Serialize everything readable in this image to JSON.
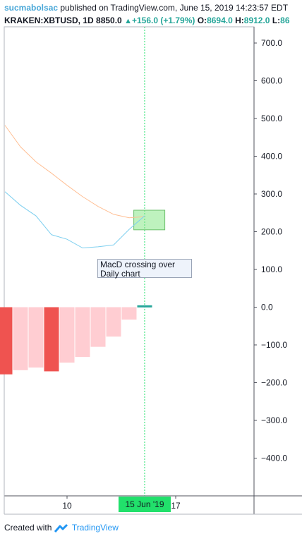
{
  "header": {
    "user": "sucmabolsac",
    "published": " published on TradingView.com, June 15, 2019 14:23:57 EDT",
    "symbol": "KRAKEN:XBTUSD, 1D",
    "price": "8850.0",
    "change": "+156.0 (+1.79%)",
    "open_label": "O:",
    "open_value": "8694.0",
    "high_label": "H:",
    "high_value": "8912.0",
    "low_label": "L:",
    "low_value": "86"
  },
  "annotation": {
    "text": "MacD crossing over Daily chart"
  },
  "date_tag": "15 Jun '19",
  "footer": {
    "created": "Created with",
    "brand": "TradingView"
  },
  "chart_data": {
    "type": "bar",
    "title": "",
    "xlabel": "",
    "ylabel": "",
    "ylim": [
      -500,
      740
    ],
    "y_ticks": [
      700,
      600,
      500,
      400,
      300,
      200,
      100,
      0,
      -100,
      -200,
      -300,
      -400
    ],
    "y_tick_labels": [
      "700.0",
      "600.0",
      "500.0",
      "400.0",
      "300.0",
      "200.0",
      "100.0",
      "0.0",
      "−100.0",
      "−200.0",
      "−300.0",
      "−400.0"
    ],
    "x_tick_labels": [
      {
        "day": 10,
        "label": "10"
      },
      {
        "day": 17,
        "label": "17"
      }
    ],
    "x_range_days": [
      6,
      21.5
    ],
    "histogram": {
      "days": [
        6,
        7,
        8,
        9,
        10,
        11,
        12,
        13,
        14,
        15
      ],
      "values": [
        -178,
        -167,
        -160,
        -170,
        -147,
        -132,
        -105,
        -78,
        -33,
        5
      ],
      "colors": [
        "#ef5350",
        "#ffcdd2",
        "#ffcdd2",
        "#ef5350",
        "#ffcdd2",
        "#ffcdd2",
        "#ffcdd2",
        "#ffcdd2",
        "#ffcdd2",
        "#26a69a"
      ]
    },
    "series": [
      {
        "color": "#ffbf94",
        "x": [
          6,
          7,
          8,
          9,
          10,
          11,
          12,
          13,
          14,
          15
        ],
        "values": [
          482,
          425,
          385,
          355,
          323,
          293,
          267,
          246,
          237,
          240
        ]
      },
      {
        "color": "#7dcfef",
        "x": [
          6,
          7,
          8,
          9,
          10,
          11,
          12,
          13,
          14,
          15
        ],
        "values": [
          306,
          270,
          242,
          192,
          180,
          157,
          160,
          165,
          206,
          242
        ]
      }
    ],
    "crosshair_day": 15,
    "highlight_box": {
      "day_from": 14.3,
      "day_to": 16.3,
      "value_from": 205,
      "value_to": 257,
      "color": "#7ee57e"
    }
  }
}
